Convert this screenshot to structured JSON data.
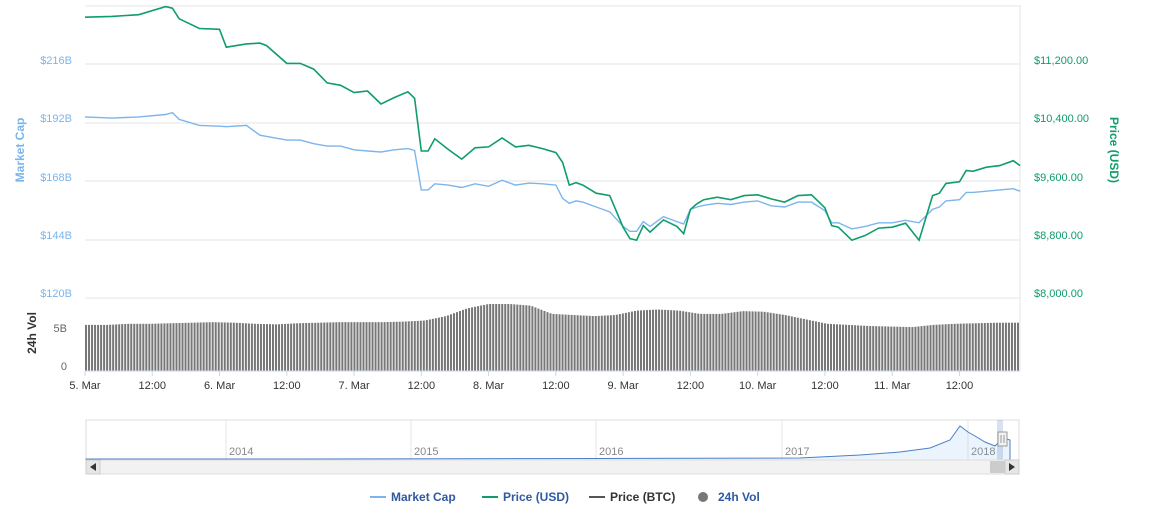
{
  "chart_data": {
    "type": "line",
    "colors": {
      "market_cap": "#7cb5ec",
      "price_usd": "#0f9d6a",
      "price_btc": "#555555",
      "volume": "#777777",
      "legend_text": "#2f5aa0",
      "grid": "#e6e6e6"
    },
    "y_left": {
      "label": "Market Cap",
      "ticks": [
        "$120B",
        "$144B",
        "$168B",
        "$192B",
        "$216B"
      ],
      "range": [
        120,
        240
      ],
      "unit": "B"
    },
    "y_right": {
      "label": "Price (USD)",
      "ticks": [
        "$8,000.00",
        "$8,800.00",
        "$9,600.00",
        "$10,400.00",
        "$11,200.00"
      ],
      "range": [
        8000,
        11600
      ]
    },
    "volume_axis": {
      "label": "24h Vol",
      "ticks": [
        "0",
        "5B"
      ]
    },
    "x_ticks": [
      "5. Mar",
      "12:00",
      "6. Mar",
      "12:00",
      "7. Mar",
      "12:00",
      "8. Mar",
      "12:00",
      "9. Mar",
      "12:00",
      "10. Mar",
      "12:00",
      "11. Mar",
      "12:00"
    ],
    "x_range_days": [
      5,
      11.95
    ],
    "series": [
      {
        "name": "Price (USD)",
        "key": "price",
        "x": [
          5.0,
          5.2,
          5.4,
          5.6,
          5.65,
          5.7,
          5.85,
          6.0,
          6.05,
          6.2,
          6.3,
          6.35,
          6.5,
          6.6,
          6.7,
          6.8,
          6.9,
          7.0,
          7.1,
          7.2,
          7.3,
          7.4,
          7.45,
          7.5,
          7.55,
          7.6,
          7.7,
          7.8,
          7.9,
          8.0,
          8.1,
          8.2,
          8.3,
          8.4,
          8.5,
          8.55,
          8.6,
          8.65,
          8.7,
          8.8,
          8.9,
          9.0,
          9.05,
          9.1,
          9.15,
          9.2,
          9.3,
          9.4,
          9.45,
          9.5,
          9.55,
          9.6,
          9.7,
          9.8,
          9.9,
          10.0,
          10.1,
          10.2,
          10.3,
          10.4,
          10.5,
          10.55,
          10.6,
          10.7,
          10.8,
          10.9,
          11.0,
          11.1,
          11.2,
          11.3,
          11.35,
          11.4,
          11.5,
          11.55,
          11.6,
          11.7,
          11.8,
          11.9,
          11.95
        ],
        "values": [
          11450,
          11460,
          11480,
          11580,
          11560,
          11430,
          11310,
          11300,
          11080,
          11120,
          11130,
          11100,
          10880,
          10880,
          10810,
          10640,
          10610,
          10520,
          10540,
          10380,
          10460,
          10530,
          10450,
          9800,
          9800,
          9950,
          9820,
          9700,
          9840,
          9850,
          9960,
          9850,
          9870,
          9830,
          9780,
          9660,
          9380,
          9410,
          9380,
          9280,
          9250,
          8860,
          8720,
          8700,
          8880,
          8800,
          8950,
          8870,
          8780,
          9080,
          9150,
          9200,
          9230,
          9200,
          9250,
          9260,
          9210,
          9170,
          9250,
          9260,
          9100,
          8880,
          8860,
          8700,
          8760,
          8850,
          8860,
          8910,
          8700,
          9250,
          9280,
          9400,
          9420,
          9560,
          9550,
          9600,
          9620,
          9680,
          9620
        ],
        "color": "#0f9d6a"
      },
      {
        "name": "Market Cap",
        "key": "cap",
        "x": [
          5.0,
          5.2,
          5.4,
          5.6,
          5.65,
          5.7,
          5.85,
          6.0,
          6.05,
          6.2,
          6.3,
          6.35,
          6.5,
          6.6,
          6.7,
          6.8,
          6.9,
          7.0,
          7.1,
          7.2,
          7.3,
          7.4,
          7.45,
          7.5,
          7.55,
          7.6,
          7.7,
          7.8,
          7.9,
          8.0,
          8.1,
          8.2,
          8.3,
          8.4,
          8.5,
          8.55,
          8.6,
          8.65,
          8.7,
          8.8,
          8.9,
          9.0,
          9.05,
          9.1,
          9.15,
          9.2,
          9.3,
          9.4,
          9.45,
          9.5,
          9.55,
          9.6,
          9.7,
          9.8,
          9.9,
          10.0,
          10.1,
          10.2,
          10.3,
          10.4,
          10.5,
          10.55,
          10.6,
          10.7,
          10.8,
          10.9,
          11.0,
          11.1,
          11.2,
          11.3,
          11.35,
          11.4,
          11.5,
          11.55,
          11.6,
          11.7,
          11.8,
          11.9,
          11.95
        ],
        "values": [
          194,
          193.5,
          194,
          195,
          195.8,
          193,
          190.5,
          190.2,
          190,
          190.5,
          186.5,
          186,
          184.5,
          184.5,
          183,
          182,
          182,
          180.5,
          180,
          179.6,
          180.5,
          181,
          180.2,
          164,
          164,
          166.5,
          166,
          165,
          166.5,
          165.5,
          168,
          166,
          166.8,
          166.5,
          166,
          160.5,
          158.5,
          159.5,
          159,
          157,
          155,
          149,
          147,
          147,
          151,
          149,
          153,
          151,
          150,
          156,
          157,
          157.7,
          158.5,
          158,
          159,
          159.5,
          157.5,
          157,
          159,
          159,
          155.5,
          150.5,
          150.5,
          148,
          149,
          150.5,
          150.5,
          151.5,
          150.5,
          156,
          157,
          159.5,
          160,
          163,
          163,
          163.5,
          164,
          164.5,
          163.5
        ],
        "color": "#7cb5ec"
      }
    ],
    "volume_levels": [
      0.62,
      0.62,
      0.64,
      0.64,
      0.65,
      0.66,
      0.67,
      0.66,
      0.64,
      0.63,
      0.65,
      0.66,
      0.67,
      0.67,
      0.67,
      0.68,
      0.7,
      0.78,
      0.92,
      1.0,
      1.0,
      0.97,
      0.82,
      0.8,
      0.78,
      0.8,
      0.88,
      0.9,
      0.88,
      0.82,
      0.82,
      0.87,
      0.86,
      0.8,
      0.72,
      0.64,
      0.62,
      0.6,
      0.59,
      0.58,
      0.62,
      0.64,
      0.65,
      0.66,
      0.66
    ],
    "navigator_ticks": [
      "2014",
      "2015",
      "2016",
      "2017",
      "2018"
    ],
    "legend": [
      {
        "label": "Market Cap",
        "kind": "line",
        "color": "#7cb5ec"
      },
      {
        "label": "Price (USD)",
        "kind": "line",
        "color": "#0f9d6a"
      },
      {
        "label": "Price (BTC)",
        "kind": "line",
        "color": "#555555"
      },
      {
        "label": "24h Vol",
        "kind": "dot",
        "color": "#777777"
      }
    ]
  }
}
